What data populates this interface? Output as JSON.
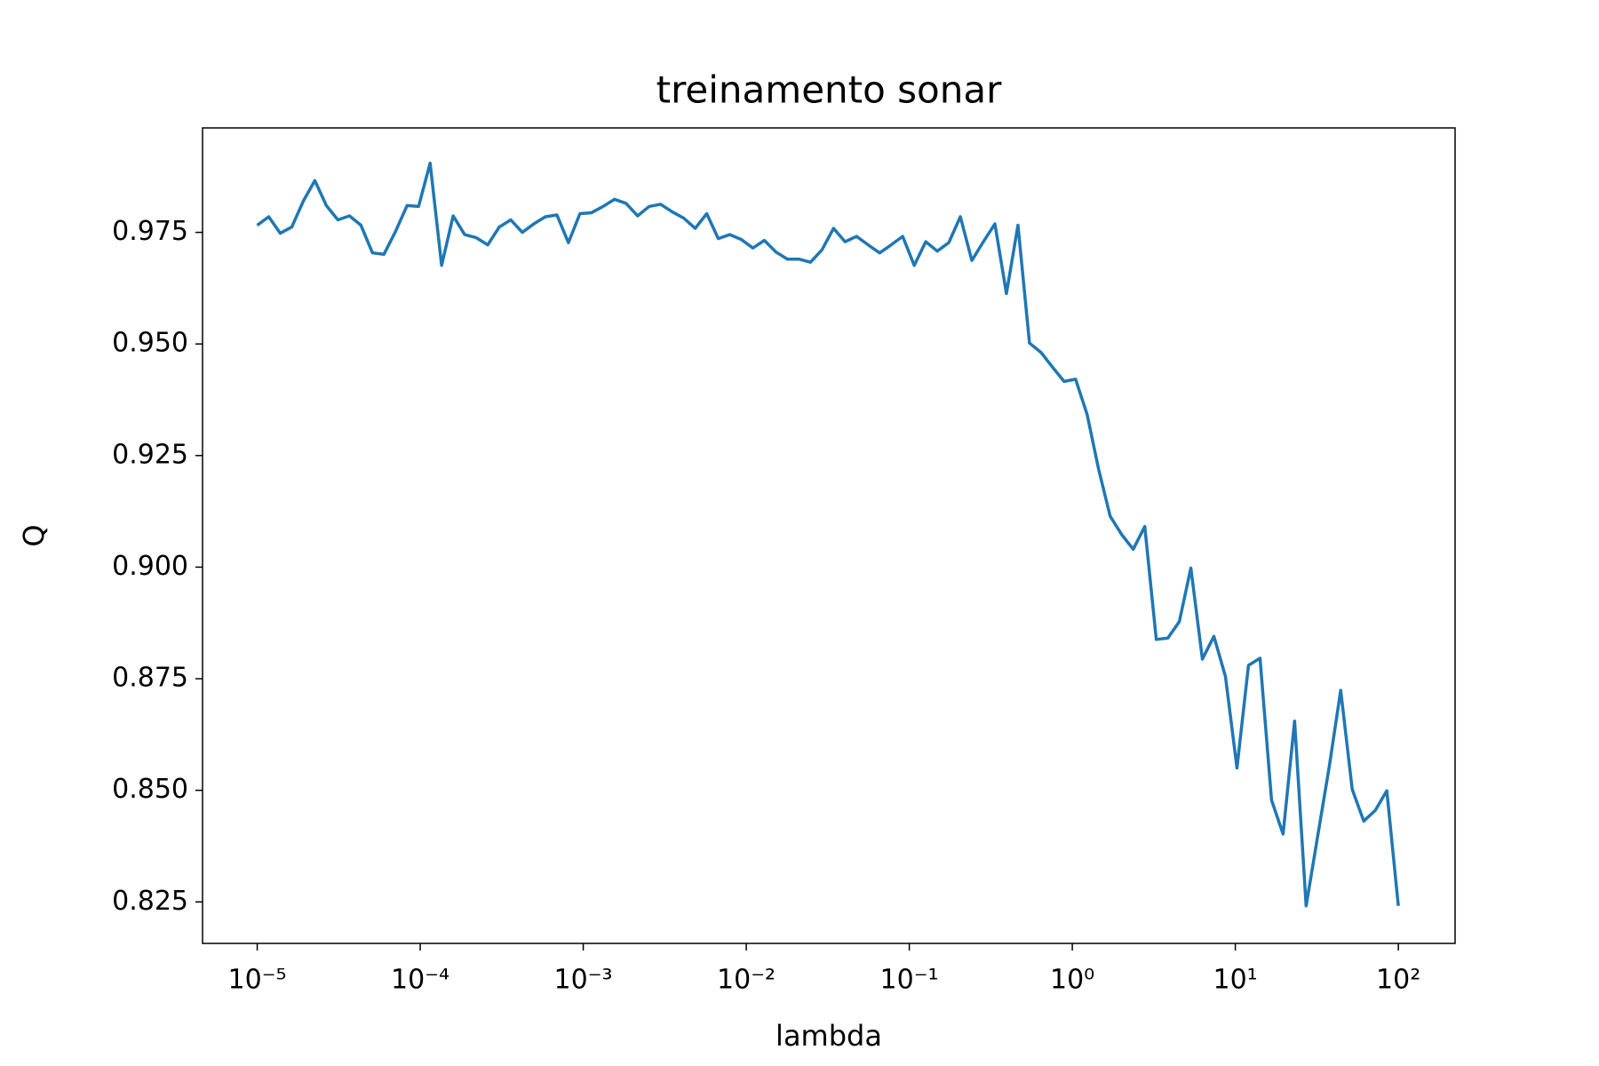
{
  "chart_data": {
    "type": "line",
    "title": "treinamento sonar",
    "x_label": "lambda",
    "y_label": "Q",
    "log_x": true,
    "color": "#1f77b4",
    "xlim": [
      4.62e-06,
      222.9
    ],
    "ylim": [
      0.8157,
      0.9984
    ],
    "xticks": [
      {
        "value": 1e-05,
        "label": "10⁻⁵"
      },
      {
        "value": 0.0001,
        "label": "10⁻⁴"
      },
      {
        "value": 0.001,
        "label": "10⁻³"
      },
      {
        "value": 0.01,
        "label": "10⁻²"
      },
      {
        "value": 0.1,
        "label": "10⁻¹"
      },
      {
        "value": 1,
        "label": "10⁰"
      },
      {
        "value": 10,
        "label": "10¹"
      },
      {
        "value": 100,
        "label": "10²"
      }
    ],
    "yticks": [
      0.825,
      {
        "value": 0.85,
        "label": "0.850"
      },
      0.875,
      {
        "value": 0.9,
        "label": "0.900"
      },
      0.925,
      {
        "value": 0.95,
        "label": "0.950"
      },
      0.975
    ],
    "x": [
      1e-05,
      1.1768e-05,
      1.3849e-05,
      1.6298e-05,
      1.9179e-05,
      2.257e-05,
      2.6561e-05,
      3.1257e-05,
      3.6784e-05,
      4.3288e-05,
      5.0941e-05,
      5.9948e-05,
      7.0548e-05,
      8.3022e-05,
      9.7701e-05,
      0.00011498,
      0.0001353,
      0.00015923,
      0.00018738,
      0.00022051,
      0.0002595,
      0.00030539,
      0.00035938,
      0.00042292,
      0.0004977,
      0.0005857,
      0.00068926,
      0.00081113,
      0.00095455,
      0.0011233,
      0.0013219,
      0.0015557,
      0.0018307,
      0.0021544,
      0.0025354,
      0.0029836,
      0.0035112,
      0.004132,
      0.0048626,
      0.0057224,
      0.0067342,
      0.0079248,
      0.009326,
      0.010975,
      0.012915,
      0.015199,
      0.017886,
      0.021049,
      0.024771,
      0.029151,
      0.034305,
      0.04037,
      0.047508,
      0.055908,
      0.065793,
      0.077426,
      0.091116,
      0.10723,
      0.12619,
      0.1485,
      0.17475,
      0.20565,
      0.24201,
      0.2848,
      0.33516,
      0.39442,
      0.46416,
      0.54623,
      0.64281,
      0.75646,
      0.89022,
      1.0476,
      1.2328,
      1.4508,
      1.7074,
      2.0092,
      2.3645,
      2.7826,
      3.2745,
      3.8535,
      4.5349,
      5.3367,
      6.2803,
      7.3907,
      8.6975,
      10.235,
      12.045,
      14.175,
      16.681,
      19.63,
      23.101,
      27.186,
      31.993,
      37.649,
      44.306,
      52.14,
      61.359,
      72.208,
      84.975,
      100
    ],
    "values": [
      0.9766,
      0.9785,
      0.9748,
      0.9762,
      0.982,
      0.9866,
      0.981,
      0.9778,
      0.9787,
      0.9766,
      0.9704,
      0.9701,
      0.9752,
      0.981,
      0.9808,
      0.9905,
      0.9676,
      0.9787,
      0.9745,
      0.9738,
      0.9722,
      0.9762,
      0.9778,
      0.975,
      0.9769,
      0.9785,
      0.9789,
      0.9727,
      0.9792,
      0.9794,
      0.9808,
      0.9824,
      0.9815,
      0.9787,
      0.9808,
      0.9813,
      0.9796,
      0.9782,
      0.9759,
      0.9792,
      0.9736,
      0.9745,
      0.9734,
      0.9715,
      0.9732,
      0.9706,
      0.969,
      0.969,
      0.9683,
      0.9711,
      0.9759,
      0.9729,
      0.9741,
      0.9722,
      0.9704,
      0.9722,
      0.9741,
      0.9676,
      0.9729,
      0.9708,
      0.9727,
      0.9785,
      0.9687,
      0.9729,
      0.9769,
      0.9613,
      0.9766,
      0.9502,
      0.9481,
      0.9448,
      0.9416,
      0.9421,
      0.9342,
      0.9219,
      0.9114,
      0.9073,
      0.904,
      0.9091,
      0.8838,
      0.8841,
      0.8878,
      0.8998,
      0.8794,
      0.8845,
      0.8755,
      0.855,
      0.878,
      0.8796,
      0.8478,
      0.8402,
      0.8655,
      0.8241,
      0.8397,
      0.8552,
      0.8724,
      0.8502,
      0.8431,
      0.8455,
      0.8499,
      0.8241
    ]
  }
}
